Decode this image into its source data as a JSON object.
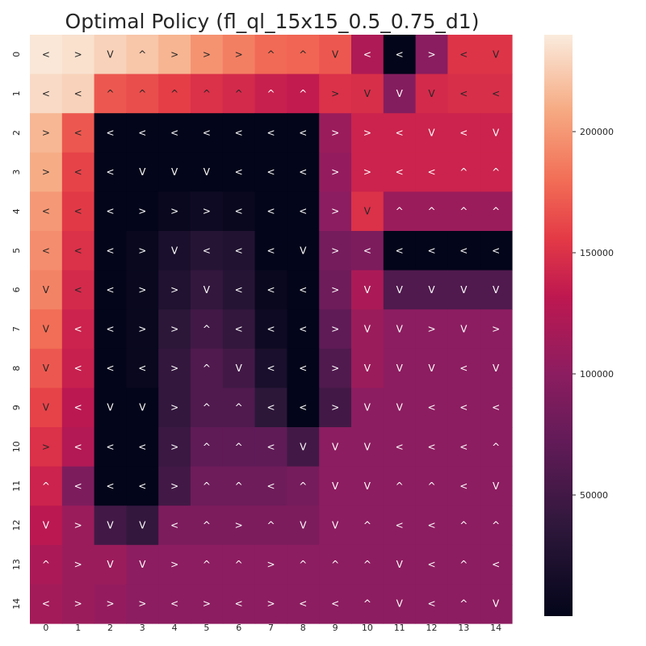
{
  "chart_data": {
    "type": "heatmap",
    "title": "Optimal Policy (fl_ql_15x15_0.5_0.75_d1)",
    "xlabel": "",
    "ylabel": "",
    "x_ticks": [
      "0",
      "1",
      "2",
      "3",
      "4",
      "5",
      "6",
      "7",
      "8",
      "9",
      "10",
      "11",
      "12",
      "13",
      "14"
    ],
    "y_ticks": [
      "0",
      "1",
      "2",
      "3",
      "4",
      "5",
      "6",
      "7",
      "8",
      "9",
      "10",
      "11",
      "12",
      "13",
      "14"
    ],
    "colorbar": {
      "colormap": "rocket",
      "vmin": 0,
      "vmax": 240000,
      "ticks": [
        50000,
        100000,
        150000,
        200000
      ],
      "tick_labels": [
        "50000",
        "100000",
        "150000",
        "200000"
      ]
    },
    "values": [
      [
        238000,
        235000,
        228000,
        222000,
        214000,
        198000,
        188000,
        178000,
        176000,
        170000,
        122000,
        0,
        98000,
        152000,
        152000
      ],
      [
        232000,
        228000,
        170000,
        165000,
        158000,
        150000,
        145000,
        138000,
        134000,
        150000,
        148000,
        95000,
        145000,
        148000,
        148000
      ],
      [
        215000,
        170000,
        0,
        0,
        0,
        0,
        0,
        0,
        0,
        110000,
        140000,
        140000,
        140000,
        140000,
        140000
      ],
      [
        210000,
        160000,
        0,
        0,
        0,
        0,
        0,
        0,
        0,
        105000,
        140000,
        140000,
        140000,
        140000,
        140000
      ],
      [
        200000,
        155000,
        0,
        0,
        5000,
        10000,
        5000,
        0,
        0,
        100000,
        150000,
        110000,
        110000,
        110000,
        110000
      ],
      [
        195000,
        150000,
        0,
        5000,
        20000,
        30000,
        25000,
        0,
        0,
        85000,
        90000,
        0,
        0,
        0,
        0
      ],
      [
        190000,
        145000,
        0,
        5000,
        25000,
        40000,
        30000,
        5000,
        0,
        80000,
        120000,
        60000,
        60000,
        60000,
        60000
      ],
      [
        180000,
        140000,
        0,
        5000,
        35000,
        50000,
        40000,
        10000,
        0,
        70000,
        110000,
        100000,
        100000,
        100000,
        100000
      ],
      [
        170000,
        138000,
        0,
        5000,
        40000,
        60000,
        50000,
        20000,
        0,
        60000,
        110000,
        100000,
        100000,
        100000,
        100000
      ],
      [
        160000,
        130000,
        0,
        0,
        40000,
        60000,
        60000,
        35000,
        0,
        50000,
        100000,
        100000,
        100000,
        100000,
        100000
      ],
      [
        150000,
        125000,
        0,
        0,
        45000,
        70000,
        70000,
        70000,
        50000,
        100000,
        100000,
        100000,
        100000,
        100000,
        100000
      ],
      [
        140000,
        90000,
        0,
        0,
        50000,
        80000,
        80000,
        80000,
        85000,
        100000,
        100000,
        100000,
        100000,
        100000,
        100000
      ],
      [
        130000,
        110000,
        50000,
        40000,
        90000,
        90000,
        90000,
        90000,
        90000,
        100000,
        100000,
        100000,
        100000,
        100000,
        100000
      ],
      [
        120000,
        110000,
        110000,
        100000,
        100000,
        100000,
        100000,
        100000,
        100000,
        100000,
        100000,
        100000,
        100000,
        100000,
        100000
      ],
      [
        115000,
        110000,
        105000,
        100000,
        100000,
        100000,
        100000,
        100000,
        100000,
        100000,
        100000,
        100000,
        100000,
        100000,
        100000
      ]
    ],
    "annotations": [
      [
        "<",
        ">",
        "V",
        "^",
        ">",
        ">",
        ">",
        "^",
        "^",
        "V",
        "<",
        "<",
        ">",
        "<",
        "V"
      ],
      [
        "<",
        "<",
        "^",
        "^",
        "^",
        "^",
        "^",
        "^",
        "^",
        ">",
        "V",
        "V",
        "V",
        "<",
        "<"
      ],
      [
        ">",
        "<",
        "<",
        "<",
        "<",
        "<",
        "<",
        "<",
        "<",
        ">",
        ">",
        "<",
        "V",
        "<",
        "V"
      ],
      [
        ">",
        "<",
        "<",
        "V",
        "V",
        "V",
        "<",
        "<",
        "<",
        ">",
        ">",
        "<",
        "<",
        "^",
        "^"
      ],
      [
        "<",
        "<",
        "<",
        ">",
        ">",
        ">",
        "<",
        "<",
        "<",
        ">",
        "V",
        "^",
        "^",
        "^",
        "^"
      ],
      [
        "<",
        "<",
        "<",
        ">",
        "V",
        "<",
        "<",
        "<",
        "V",
        ">",
        "<",
        "<",
        "<",
        "<",
        "<"
      ],
      [
        "V",
        "<",
        "<",
        ">",
        ">",
        "V",
        "<",
        "<",
        "<",
        ">",
        "V",
        "V",
        "V",
        "V",
        "V"
      ],
      [
        "V",
        "<",
        "<",
        ">",
        ">",
        "^",
        "<",
        "<",
        "<",
        ">",
        "V",
        "V",
        ">",
        "V",
        ">"
      ],
      [
        "V",
        "<",
        "<",
        "<",
        ">",
        "^",
        "V",
        "<",
        "<",
        ">",
        "V",
        "V",
        "V",
        "<",
        "V"
      ],
      [
        "V",
        "<",
        "V",
        "V",
        ">",
        "^",
        "^",
        "<",
        "<",
        ">",
        "V",
        "V",
        "<",
        "<",
        "<"
      ],
      [
        ">",
        "<",
        "<",
        "<",
        ">",
        "^",
        "^",
        "<",
        "V",
        "V",
        "V",
        "<",
        "<",
        "<",
        "^"
      ],
      [
        "^",
        "<",
        "<",
        "<",
        ">",
        "^",
        "^",
        "<",
        "^",
        "V",
        "V",
        "^",
        "^",
        "<",
        "V"
      ],
      [
        "V",
        ">",
        "V",
        "V",
        "<",
        "^",
        ">",
        "^",
        "V",
        "V",
        "^",
        "<",
        "<",
        "^",
        "^"
      ],
      [
        "^",
        ">",
        "V",
        "V",
        ">",
        "^",
        "^",
        ">",
        "^",
        "^",
        "^",
        "V",
        "<",
        "^",
        "<"
      ],
      [
        "<",
        ">",
        ">",
        ">",
        "<",
        ">",
        "<",
        ">",
        "<",
        "<",
        "^",
        "V",
        "<",
        "^",
        "V"
      ]
    ]
  }
}
